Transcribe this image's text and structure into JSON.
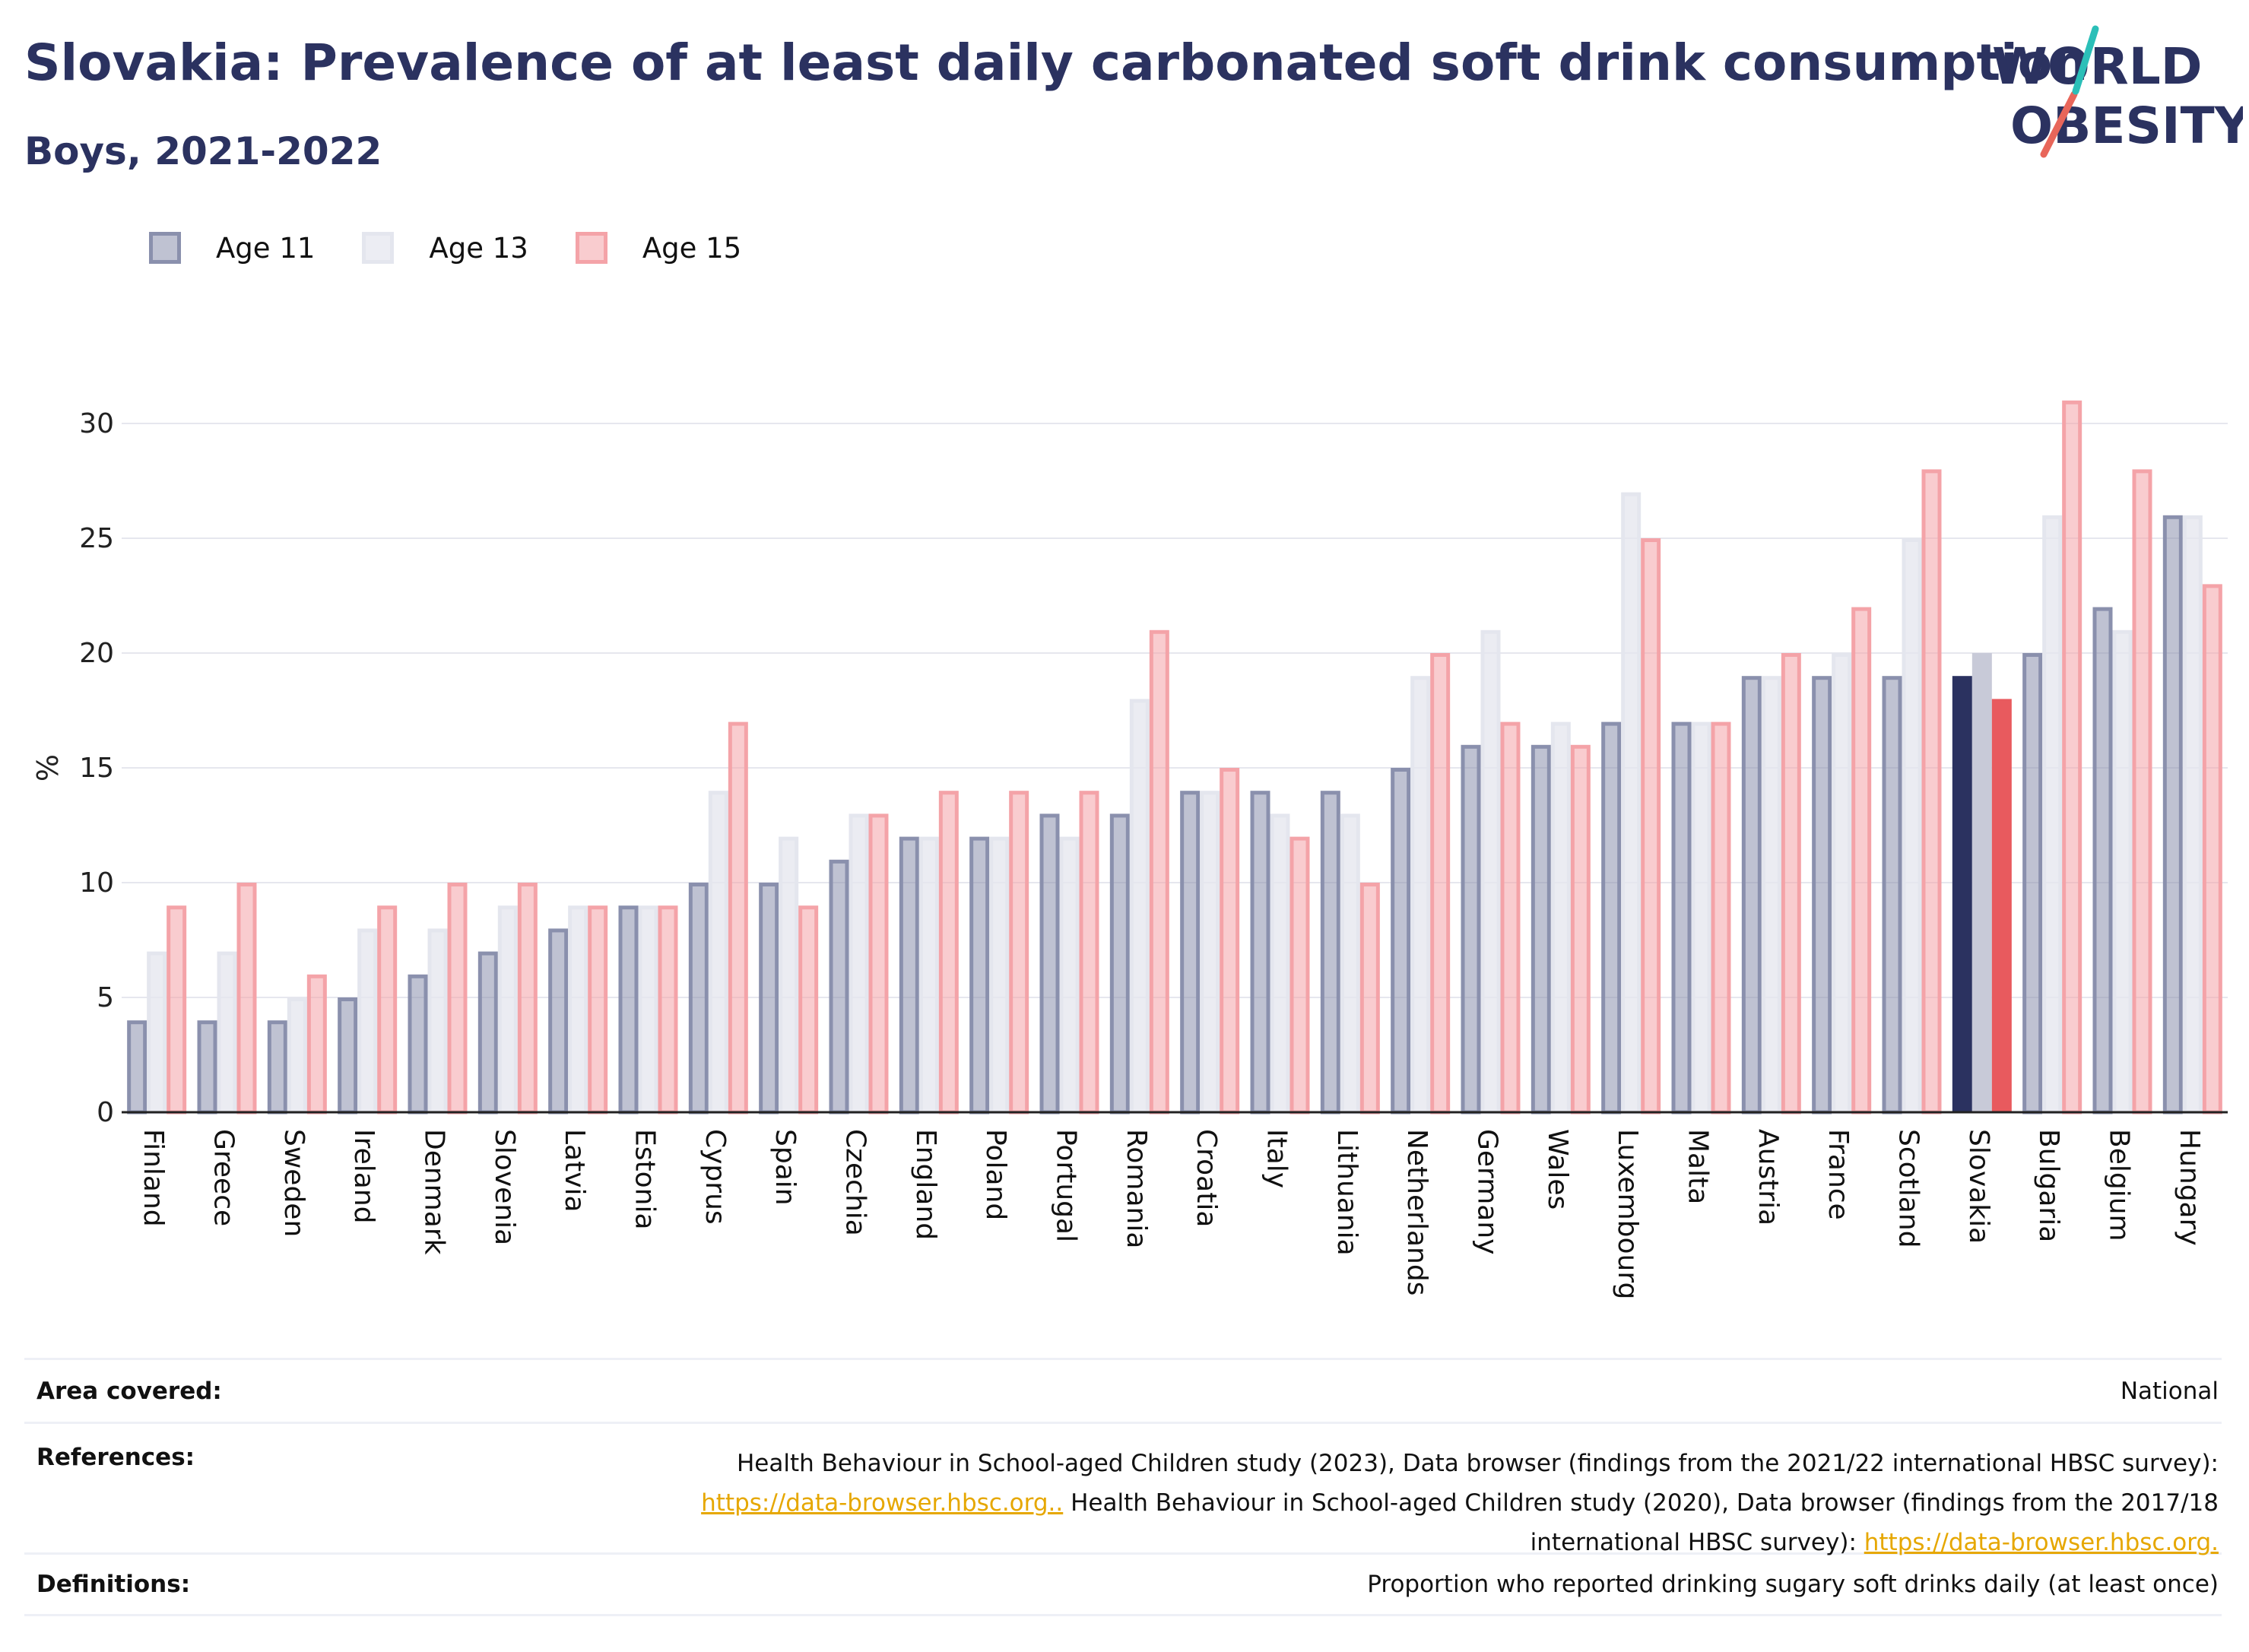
{
  "header": {
    "title": "Slovakia: Prevalence of at least daily carbonated soft drink consumption",
    "subtitle": "Boys, 2021-2022"
  },
  "logo": {
    "line1": "WORLD",
    "line2": "OBESITY"
  },
  "colors": {
    "age11": "#8a90ad",
    "age13": "#e4e6ee",
    "age15": "#f4a3a8",
    "age11_highlight": "#2b3260",
    "age13_highlight": "#c8cad8",
    "age15_highlight": "#e85a5e",
    "title": "#2b3260"
  },
  "chart_data": {
    "type": "bar",
    "title": "Slovakia: Prevalence of at least daily carbonated soft drink consumption",
    "subtitle": "Boys, 2021-2022",
    "xlabel": "",
    "ylabel": "%",
    "ylim": [
      0,
      32
    ],
    "yticks": [
      0,
      5,
      10,
      15,
      20,
      25,
      30
    ],
    "grid": true,
    "legend_position": "top-left",
    "highlight": "Slovakia",
    "categories": [
      "Finland",
      "Greece",
      "Sweden",
      "Ireland",
      "Denmark",
      "Slovenia",
      "Latvia",
      "Estonia",
      "Cyprus",
      "Spain",
      "Czechia",
      "England",
      "Poland",
      "Portugal",
      "Romania",
      "Croatia",
      "Italy",
      "Lithuania",
      "Netherlands",
      "Germany",
      "Wales",
      "Luxembourg",
      "Malta",
      "Austria",
      "France",
      "Scotland",
      "Slovakia",
      "Bulgaria",
      "Belgium",
      "Hungary"
    ],
    "series": [
      {
        "name": "Age 11",
        "values": [
          4,
          4,
          4,
          5,
          6,
          7,
          8,
          9,
          10,
          10,
          11,
          12,
          12,
          13,
          13,
          14,
          14,
          14,
          15,
          16,
          16,
          17,
          17,
          19,
          19,
          19,
          19,
          20,
          22,
          26
        ]
      },
      {
        "name": "Age 13",
        "values": [
          7,
          7,
          5,
          8,
          8,
          9,
          9,
          9,
          14,
          12,
          13,
          12,
          12,
          12,
          18,
          14,
          13,
          13,
          19,
          21,
          17,
          27,
          17,
          19,
          20,
          25,
          20,
          26,
          21,
          26
        ]
      },
      {
        "name": "Age 15",
        "values": [
          9,
          10,
          6,
          9,
          10,
          10,
          9,
          9,
          17,
          9,
          13,
          14,
          14,
          14,
          21,
          15,
          12,
          10,
          20,
          17,
          16,
          25,
          17,
          20,
          22,
          28,
          18,
          31,
          28,
          23
        ]
      }
    ]
  },
  "footer": {
    "area_label": "Area covered:",
    "area_value": "National",
    "references_label": "References:",
    "ref_text_1": "Health Behaviour in School-aged Children study (2023), Data browser (findings from the 2021/22 international HBSC survey): ",
    "ref_link_1": "https://data-browser.hbsc.org..",
    "ref_text_2": " Health Behaviour in School-aged Children study (2020), Data browser (findings from the 2017/18 international HBSC survey): ",
    "ref_link_2": "https://data-browser.hbsc.org.",
    "definitions_label": "Definitions:",
    "definitions_value": "Proportion who reported drinking sugary soft drinks daily (at least once)"
  }
}
